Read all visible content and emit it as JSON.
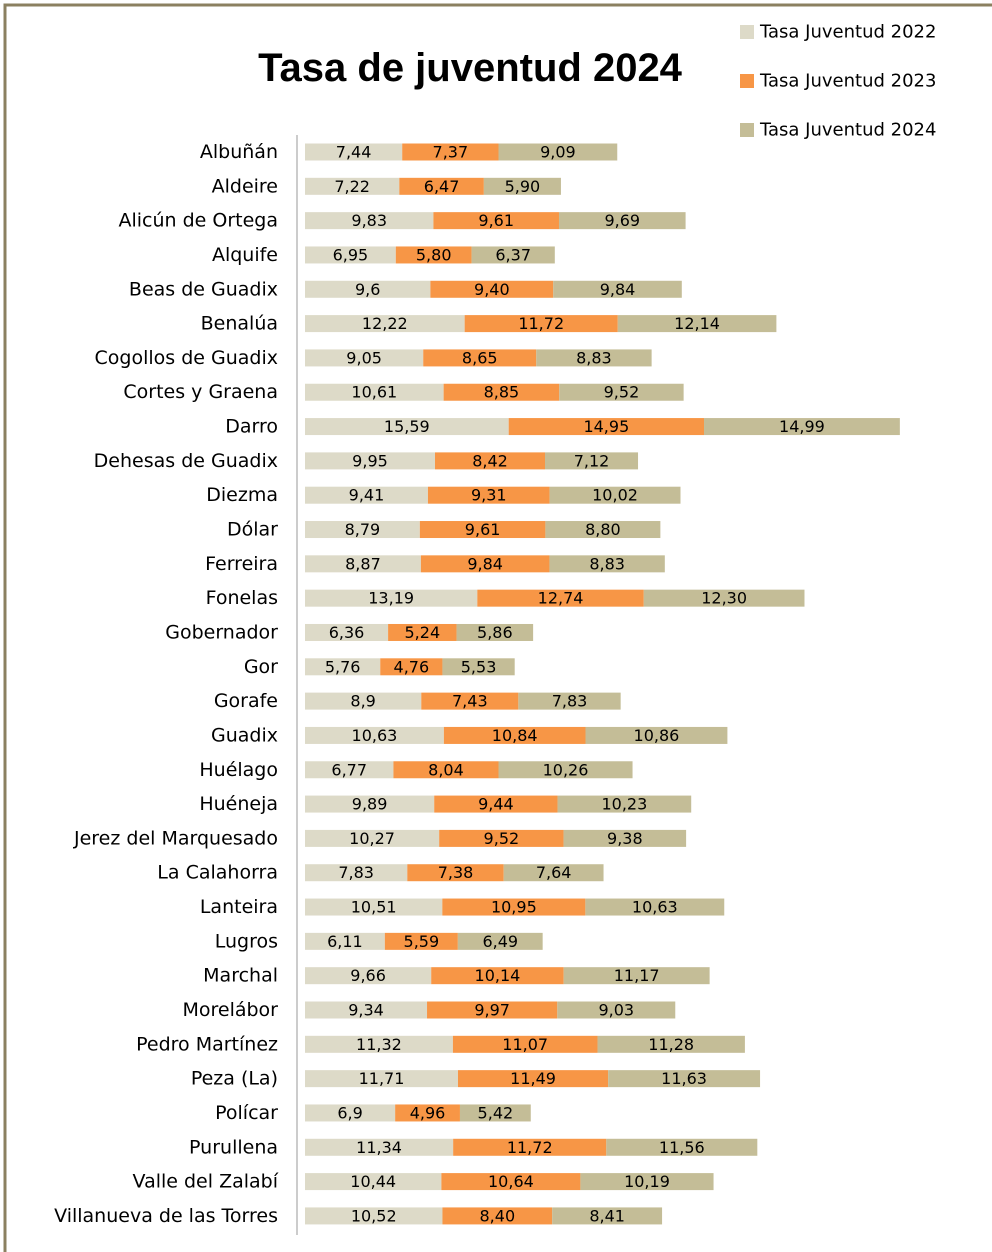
{
  "chart_data": {
    "type": "stacked-bar-horizontal",
    "title": "Tasa de juventud 2024",
    "categories": [
      "Albuñán",
      "Aldeire",
      "Alicún de Ortega",
      "Alquife",
      "Beas de Guadix",
      "Benalúa",
      "Cogollos de Guadix",
      "Cortes y Graena",
      "Darro",
      "Dehesas de Guadix",
      "Diezma",
      "Dólar",
      "Ferreira",
      "Fonelas",
      "Gobernador",
      "Gor",
      "Gorafe",
      "Guadix",
      "Huélago",
      "Huéneja",
      "Jerez del Marquesado",
      "La Calahorra",
      "Lanteira",
      "Lugros",
      "Marchal",
      "Morelábor",
      "Pedro Martínez",
      "Peza (La)",
      "Polícar",
      "Purullena",
      "Valle del Zalabí",
      "Villanueva de las Torres"
    ],
    "xlim": [
      0,
      46
    ],
    "legend": "top-right",
    "series": [
      {
        "name": "Tasa Juventud 2022",
        "color": "#dddac8",
        "values": [
          7.44,
          7.22,
          9.83,
          6.95,
          9.6,
          12.22,
          9.05,
          10.61,
          15.59,
          9.95,
          9.41,
          8.79,
          8.87,
          13.19,
          6.36,
          5.76,
          8.9,
          10.63,
          6.77,
          9.89,
          10.27,
          7.83,
          10.51,
          6.11,
          9.66,
          9.34,
          11.32,
          11.71,
          6.9,
          11.34,
          10.44,
          10.52
        ],
        "value_labels": [
          "7,44",
          "7,22",
          "9,83",
          "6,95",
          "9,6",
          "12,22",
          "9,05",
          "10,61",
          "15,59",
          "9,95",
          "9,41",
          "8,79",
          "8,87",
          "13,19",
          "6,36",
          "5,76",
          "8,9",
          "10,63",
          "6,77",
          "9,89",
          "10,27",
          "7,83",
          "10,51",
          "6,11",
          "9,66",
          "9,34",
          "11,32",
          "11,71",
          "6,9",
          "11,34",
          "10,44",
          "10,52"
        ]
      },
      {
        "name": "Tasa Juventud 2023",
        "color": "#f79646",
        "values": [
          7.37,
          6.47,
          9.61,
          5.8,
          9.4,
          11.72,
          8.65,
          8.85,
          14.95,
          8.42,
          9.31,
          9.61,
          9.84,
          12.74,
          5.24,
          4.76,
          7.43,
          10.84,
          8.04,
          9.44,
          9.52,
          7.38,
          10.95,
          5.59,
          10.14,
          9.97,
          11.07,
          11.49,
          4.96,
          11.72,
          10.64,
          8.4
        ],
        "value_labels": [
          "7,37",
          "6,47",
          "9,61",
          "5,80",
          "9,40",
          "11,72",
          "8,65",
          "8,85",
          "14,95",
          "8,42",
          "9,31",
          "9,61",
          "9,84",
          "12,74",
          "5,24",
          "4,76",
          "7,43",
          "10,84",
          "8,04",
          "9,44",
          "9,52",
          "7,38",
          "10,95",
          "5,59",
          "10,14",
          "9,97",
          "11,07",
          "11,49",
          "4,96",
          "11,72",
          "10,64",
          "8,40"
        ]
      },
      {
        "name": "Tasa Juventud 2024",
        "color": "#c4bd97",
        "values": [
          9.09,
          5.9,
          9.69,
          6.37,
          9.84,
          12.14,
          8.83,
          9.52,
          14.99,
          7.12,
          10.02,
          8.8,
          8.83,
          12.3,
          5.86,
          5.53,
          7.83,
          10.86,
          10.26,
          10.23,
          9.38,
          7.64,
          10.63,
          6.49,
          11.17,
          9.03,
          11.28,
          11.63,
          5.42,
          11.56,
          10.19,
          8.41
        ],
        "value_labels": [
          "9,09",
          "5,90",
          "9,69",
          "6,37",
          "9,84",
          "12,14",
          "8,83",
          "9,52",
          "14,99",
          "7,12",
          "10,02",
          "8,80",
          "8,83",
          "12,30",
          "5,86",
          "5,53",
          "7,83",
          "10,86",
          "10,26",
          "10,23",
          "9,38",
          "7,64",
          "10,63",
          "6,49",
          "11,17",
          "9,03",
          "11,28",
          "11,63",
          "5,42",
          "11,56",
          "10,19",
          "8,41"
        ]
      }
    ]
  }
}
